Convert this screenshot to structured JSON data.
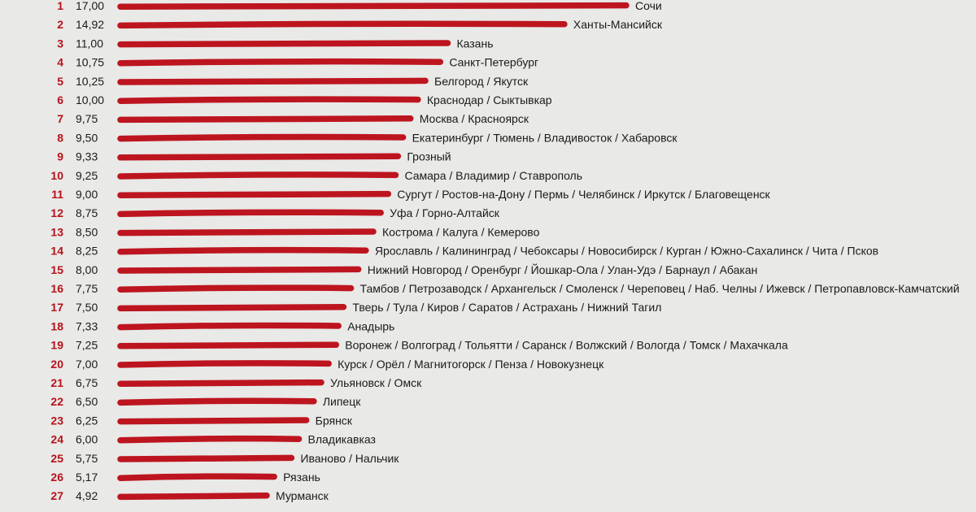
{
  "colors": {
    "bar": "#bb0a14",
    "rank": "#b5121b",
    "text": "#1a1a1a",
    "background": "#e9e9e7"
  },
  "chart_data": {
    "type": "bar",
    "orientation": "horizontal",
    "title": "",
    "xlabel": "",
    "ylabel": "",
    "grid": false,
    "legend": "none",
    "xlim": [
      0,
      17
    ],
    "rows": [
      {
        "rank": "1",
        "value_label": "17,00",
        "value": 17.0,
        "label": "Сочи"
      },
      {
        "rank": "2",
        "value_label": "14,92",
        "value": 14.92,
        "label": "Ханты-Мансийск"
      },
      {
        "rank": "3",
        "value_label": "11,00",
        "value": 11.0,
        "label": "Казань"
      },
      {
        "rank": "4",
        "value_label": "10,75",
        "value": 10.75,
        "label": "Санкт-Петербург"
      },
      {
        "rank": "5",
        "value_label": "10,25",
        "value": 10.25,
        "label": "Белгород / Якутск"
      },
      {
        "rank": "6",
        "value_label": "10,00",
        "value": 10.0,
        "label": "Краснодар / Сыктывкар"
      },
      {
        "rank": "7",
        "value_label": "9,75",
        "value": 9.75,
        "label": "Москва / Красноярск"
      },
      {
        "rank": "8",
        "value_label": "9,50",
        "value": 9.5,
        "label": "Екатеринбург / Тюмень / Владивосток / Хабаровск"
      },
      {
        "rank": "9",
        "value_label": "9,33",
        "value": 9.33,
        "label": "Грозный"
      },
      {
        "rank": "10",
        "value_label": "9,25",
        "value": 9.25,
        "label": "Самара / Владимир / Ставрополь"
      },
      {
        "rank": "11",
        "value_label": "9,00",
        "value": 9.0,
        "label": "Сургут / Ростов-на-Дону / Пермь / Челябинск / Иркутск / Благовещенск"
      },
      {
        "rank": "12",
        "value_label": "8,75",
        "value": 8.75,
        "label": "Уфа / Горно-Алтайск"
      },
      {
        "rank": "13",
        "value_label": "8,50",
        "value": 8.5,
        "label": "Кострома / Калуга / Кемерово"
      },
      {
        "rank": "14",
        "value_label": "8,25",
        "value": 8.25,
        "label": "Ярославль / Калининград / Чебоксары / Новосибирск / Курган / Южно-Сахалинск / Чита / Псков"
      },
      {
        "rank": "15",
        "value_label": "8,00",
        "value": 8.0,
        "label": "Нижний Новгород / Оренбург / Йошкар-Ола / Улан-Удэ / Барнаул / Абакан"
      },
      {
        "rank": "16",
        "value_label": "7,75",
        "value": 7.75,
        "label": "Тамбов / Петрозаводск / Архангельск / Смоленск / Череповец / Наб. Челны / Ижевск / Петропавловск-Камчатский"
      },
      {
        "rank": "17",
        "value_label": "7,50",
        "value": 7.5,
        "label": "Тверь / Тула / Киров / Саратов / Астрахань / Нижний Тагил"
      },
      {
        "rank": "18",
        "value_label": "7,33",
        "value": 7.33,
        "label": "Анадырь"
      },
      {
        "rank": "19",
        "value_label": "7,25",
        "value": 7.25,
        "label": "Воронеж / Волгоград / Тольятти / Саранск / Волжский / Вологда / Томск / Махачкала"
      },
      {
        "rank": "20",
        "value_label": "7,00",
        "value": 7.0,
        "label": "Курск / Орёл / Магнитогорск / Пенза / Новокузнецк"
      },
      {
        "rank": "21",
        "value_label": "6,75",
        "value": 6.75,
        "label": "Ульяновск / Омск"
      },
      {
        "rank": "22",
        "value_label": "6,50",
        "value": 6.5,
        "label": "Липецк"
      },
      {
        "rank": "23",
        "value_label": "6,25",
        "value": 6.25,
        "label": "Брянск"
      },
      {
        "rank": "24",
        "value_label": "6,00",
        "value": 6.0,
        "label": "Владикавказ"
      },
      {
        "rank": "25",
        "value_label": "5,75",
        "value": 5.75,
        "label": "Иваново / Нальчик"
      },
      {
        "rank": "26",
        "value_label": "5,17",
        "value": 5.17,
        "label": "Рязань"
      },
      {
        "rank": "27",
        "value_label": "4,92",
        "value": 4.92,
        "label": "Мурманск"
      }
    ]
  }
}
